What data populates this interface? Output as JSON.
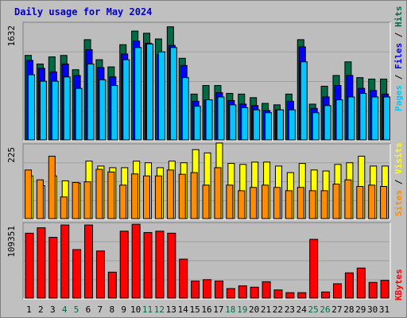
{
  "title": "Daily usage for May 2024",
  "colors": {
    "frame_bg": "#c0c0c0",
    "plot_bg": "#bdbdbd",
    "title": "#0000c0",
    "hits": "#006a44",
    "files": "#0000ff",
    "pages": "#00c8ff",
    "visits": "#ffff00",
    "sites": "#ff8c00",
    "kbytes": "#ff0000",
    "weekend_day": "#006a44",
    "weekday": "#000000"
  },
  "chart_data": [
    {
      "type": "bar",
      "name_panel": "hits-files-pages",
      "ymax_label": "1632",
      "ylim": [
        0,
        1632
      ],
      "legend": [
        "Pages",
        "Files",
        "Hits"
      ],
      "categories": [
        "1",
        "2",
        "3",
        "4",
        "5",
        "6",
        "7",
        "8",
        "9",
        "10",
        "11",
        "12",
        "13",
        "14",
        "15",
        "16",
        "17",
        "18",
        "19",
        "20",
        "21",
        "22",
        "23",
        "24",
        "25",
        "26",
        "27",
        "28",
        "29",
        "30",
        "31"
      ],
      "series": [
        {
          "name": "Hits",
          "values": [
            1180,
            1060,
            1160,
            1180,
            980,
            1400,
            1120,
            1020,
            1330,
            1520,
            1490,
            1410,
            1580,
            1140,
            640,
            760,
            760,
            650,
            640,
            590,
            510,
            490,
            640,
            1400,
            500,
            750,
            900,
            1090,
            870,
            850,
            850
          ]
        },
        {
          "name": "Files",
          "values": [
            1110,
            1000,
            950,
            1060,
            900,
            1260,
            1010,
            880,
            1200,
            1380,
            1350,
            1190,
            1320,
            1040,
            540,
            560,
            660,
            550,
            500,
            480,
            410,
            420,
            540,
            1300,
            440,
            600,
            760,
            900,
            720,
            690,
            640
          ]
        },
        {
          "name": "Pages",
          "values": [
            910,
            820,
            820,
            880,
            720,
            1060,
            840,
            760,
            1120,
            1290,
            1340,
            1230,
            1290,
            870,
            470,
            560,
            600,
            490,
            450,
            420,
            380,
            420,
            420,
            1090,
            380,
            480,
            560,
            600,
            650,
            600,
            600
          ]
        }
      ]
    },
    {
      "type": "bar",
      "name_panel": "visits-sites",
      "ymax_label": "225",
      "ylim": [
        0,
        225
      ],
      "legend": [
        "Sites",
        "Visits"
      ],
      "categories": [
        "1",
        "2",
        "3",
        "4",
        "5",
        "6",
        "7",
        "8",
        "9",
        "10",
        "11",
        "12",
        "13",
        "14",
        "15",
        "16",
        "17",
        "18",
        "19",
        "20",
        "21",
        "22",
        "23",
        "24",
        "25",
        "26",
        "27",
        "28",
        "29",
        "30",
        "31"
      ],
      "series": [
        {
          "name": "Visits",
          "values": [
            130,
            100,
            130,
            115,
            108,
            175,
            160,
            155,
            155,
            175,
            170,
            155,
            175,
            170,
            210,
            200,
            230,
            168,
            165,
            172,
            172,
            160,
            140,
            168,
            148,
            145,
            165,
            170,
            190,
            160,
            160
          ]
        },
        {
          "name": "Sites",
          "values": [
            148,
            118,
            190,
            66,
            110,
            112,
            150,
            142,
            102,
            136,
            130,
            130,
            148,
            135,
            140,
            102,
            155,
            102,
            85,
            95,
            102,
            95,
            85,
            95,
            85,
            85,
            105,
            118,
            98,
            102,
            98
          ]
        }
      ]
    },
    {
      "type": "bar",
      "name_panel": "kbytes",
      "ymax_label": "109351",
      "ylim": [
        0,
        109351
      ],
      "legend": [
        "KBytes"
      ],
      "categories": [
        "1",
        "2",
        "3",
        "4",
        "5",
        "6",
        "7",
        "8",
        "9",
        "10",
        "11",
        "12",
        "13",
        "14",
        "15",
        "16",
        "17",
        "18",
        "19",
        "20",
        "21",
        "22",
        "23",
        "24",
        "25",
        "26",
        "27",
        "28",
        "29",
        "30",
        "31"
      ],
      "series": [
        {
          "name": "KBytes",
          "values": [
            95000,
            103000,
            89000,
            107000,
            71000,
            107000,
            69000,
            38000,
            98000,
            108000,
            96000,
            98000,
            95000,
            57000,
            25000,
            27000,
            25000,
            14000,
            18000,
            16000,
            24000,
            12000,
            8000,
            8000,
            86000,
            9000,
            21000,
            37000,
            44000,
            23000,
            26000
          ]
        }
      ]
    }
  ],
  "x_days": [
    "1",
    "2",
    "3",
    "4",
    "5",
    "6",
    "7",
    "8",
    "9",
    "10",
    "11",
    "12",
    "13",
    "14",
    "15",
    "16",
    "17",
    "18",
    "19",
    "20",
    "21",
    "22",
    "23",
    "24",
    "25",
    "26",
    "27",
    "28",
    "29",
    "30",
    "31"
  ],
  "weekend_days": [
    4,
    5,
    11,
    12,
    18,
    19,
    25,
    26
  ],
  "side_labels": {
    "top": [
      "Pages",
      "Files",
      "Hits"
    ],
    "middle": [
      "Sites",
      "Visits"
    ],
    "bottom": [
      "KBytes"
    ],
    "separator": " / "
  }
}
